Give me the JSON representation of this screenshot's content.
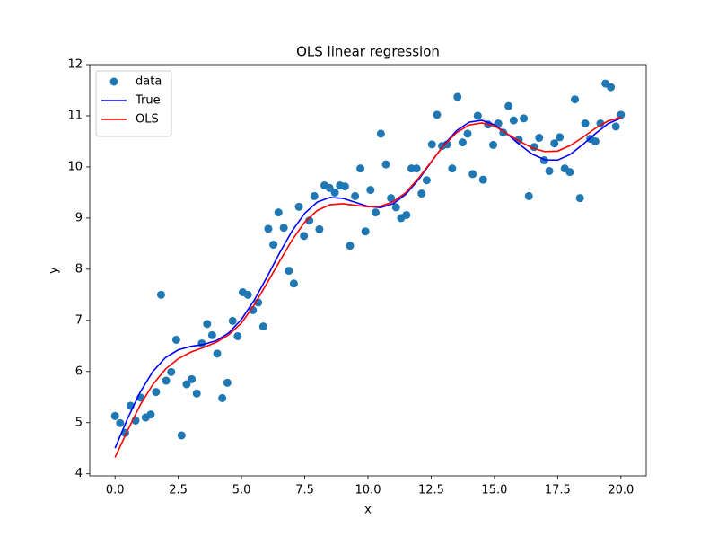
{
  "chart_data": {
    "type": "scatter",
    "title": "OLS linear regression",
    "x_label": "x",
    "y_label": "y",
    "xlim": [
      -1.0,
      21.0
    ],
    "ylim": [
      3.96,
      12.0
    ],
    "xticks": [
      {
        "value": 0,
        "label": "0.0"
      },
      {
        "value": 2.5,
        "label": "2.5"
      },
      {
        "value": 5,
        "label": "5.0"
      },
      {
        "value": 7.5,
        "label": "7.5"
      },
      {
        "value": 10,
        "label": "10.0"
      },
      {
        "value": 12.5,
        "label": "12.5"
      },
      {
        "value": 15,
        "label": "15.0"
      },
      {
        "value": 17.5,
        "label": "17.5"
      },
      {
        "value": 20,
        "label": "20.0"
      }
    ],
    "yticks": [
      4,
      5,
      6,
      7,
      8,
      9,
      10,
      11,
      12
    ],
    "legend": "upper left",
    "series": [
      {
        "name": "data",
        "type": "scatter",
        "color": "#1f77b4",
        "x": [
          0,
          0.2,
          0.4,
          0.61,
          0.81,
          1.01,
          1.21,
          1.41,
          1.62,
          1.82,
          2.02,
          2.22,
          2.42,
          2.63,
          2.83,
          3.03,
          3.23,
          3.43,
          3.64,
          3.84,
          4.04,
          4.24,
          4.44,
          4.65,
          4.85,
          5.05,
          5.25,
          5.45,
          5.66,
          5.86,
          6.06,
          6.26,
          6.46,
          6.67,
          6.87,
          7.07,
          7.27,
          7.47,
          7.68,
          7.88,
          8.08,
          8.28,
          8.48,
          8.69,
          8.89,
          9.09,
          9.29,
          9.49,
          9.7,
          9.9,
          10.1,
          10.3,
          10.51,
          10.71,
          10.91,
          11.11,
          11.31,
          11.52,
          11.72,
          11.92,
          12.12,
          12.32,
          12.53,
          12.73,
          12.93,
          13.13,
          13.33,
          13.54,
          13.74,
          13.94,
          14.14,
          14.34,
          14.55,
          14.75,
          14.95,
          15.15,
          15.35,
          15.56,
          15.76,
          15.96,
          16.16,
          16.36,
          16.57,
          16.77,
          16.97,
          17.17,
          17.37,
          17.58,
          17.78,
          17.98,
          18.18,
          18.38,
          18.59,
          18.79,
          18.99,
          19.19,
          19.39,
          19.6,
          19.8,
          20.0
        ],
        "values": [
          5.13,
          4.99,
          4.8,
          5.33,
          5.04,
          5.49,
          5.1,
          5.16,
          5.6,
          7.5,
          5.82,
          5.99,
          6.62,
          4.75,
          5.75,
          5.85,
          5.57,
          6.55,
          6.93,
          6.71,
          6.35,
          5.48,
          5.78,
          6.99,
          6.69,
          7.55,
          7.5,
          7.2,
          7.35,
          6.88,
          8.79,
          8.48,
          9.11,
          8.81,
          7.97,
          7.72,
          9.22,
          8.65,
          8.95,
          9.43,
          8.78,
          9.64,
          9.59,
          9.5,
          9.64,
          9.62,
          8.46,
          9.43,
          9.97,
          8.74,
          9.55,
          9.11,
          10.65,
          10.05,
          9.39,
          9.21,
          9.0,
          9.06,
          9.97,
          9.97,
          9.48,
          9.74,
          10.44,
          11.02,
          10.41,
          10.44,
          9.97,
          11.37,
          10.48,
          10.65,
          9.86,
          11.0,
          9.75,
          10.83,
          10.43,
          10.85,
          10.67,
          11.19,
          10.91,
          10.53,
          10.95,
          9.43,
          10.39,
          10.57,
          10.13,
          9.92,
          10.46,
          10.58,
          9.97,
          9.9,
          11.32,
          9.39,
          10.85,
          10.55,
          10.5,
          10.85,
          11.63,
          11.56,
          10.79,
          11.02
        ]
      },
      {
        "name": "True",
        "type": "line",
        "color": "#0000ff",
        "x": [
          0,
          0.5,
          1,
          1.5,
          2,
          2.5,
          3,
          3.5,
          4,
          4.5,
          5,
          5.5,
          6,
          6.5,
          7,
          7.5,
          8,
          8.5,
          9,
          9.5,
          10,
          10.5,
          11,
          11.5,
          12,
          12.5,
          13,
          13.5,
          14,
          14.5,
          15,
          15.5,
          16,
          16.5,
          17,
          17.5,
          18,
          18.5,
          19,
          19.5,
          20
        ],
        "values": [
          4.5,
          5.085,
          5.601,
          6.004,
          6.275,
          6.424,
          6.491,
          6.53,
          6.602,
          6.756,
          7.021,
          7.392,
          7.84,
          8.313,
          8.748,
          9.094,
          9.315,
          9.404,
          9.386,
          9.307,
          9.228,
          9.205,
          9.28,
          9.468,
          9.752,
          10.092,
          10.43,
          10.707,
          10.875,
          10.912,
          10.825,
          10.646,
          10.436,
          10.249,
          10.139,
          10.134,
          10.245,
          10.441,
          10.655,
          10.848,
          10.956
        ]
      },
      {
        "name": "OLS",
        "type": "line",
        "color": "#ff0000",
        "x": [
          0,
          0.5,
          1,
          1.5,
          2,
          2.5,
          3,
          3.5,
          4,
          4.5,
          5,
          5.5,
          6,
          6.5,
          7,
          7.5,
          8,
          8.5,
          9,
          9.5,
          10,
          10.5,
          11,
          11.5,
          12,
          12.5,
          13,
          13.5,
          14,
          14.5,
          15,
          15.5,
          16,
          16.5,
          17,
          17.5,
          18,
          18.5,
          19,
          19.5,
          20
        ],
        "values": [
          4.32,
          4.85,
          5.35,
          5.75,
          6.05,
          6.25,
          6.38,
          6.47,
          6.57,
          6.72,
          6.95,
          7.3,
          7.72,
          8.15,
          8.57,
          8.92,
          9.15,
          9.26,
          9.28,
          9.25,
          9.22,
          9.23,
          9.32,
          9.5,
          9.78,
          10.1,
          10.42,
          10.67,
          10.82,
          10.86,
          10.8,
          10.65,
          10.5,
          10.37,
          10.3,
          10.31,
          10.42,
          10.58,
          10.76,
          10.9,
          10.97
        ]
      }
    ]
  }
}
